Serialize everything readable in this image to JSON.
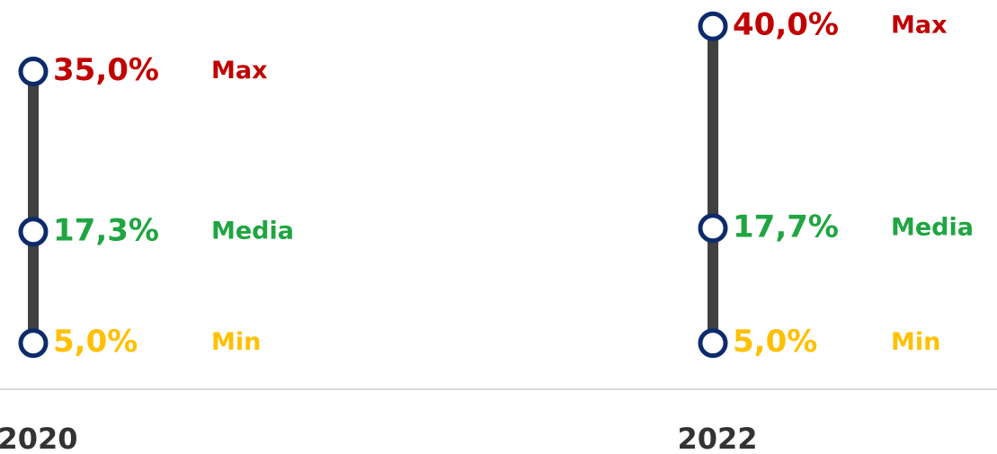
{
  "chart_data": {
    "type": "range",
    "categories": [
      "2020",
      "2022"
    ],
    "series": [
      {
        "name": "Max",
        "color": "#c00000",
        "values": [
          35.0,
          40.0
        ],
        "value_labels": [
          "35,0%",
          "40,0%"
        ]
      },
      {
        "name": "Media",
        "color": "#1fa541",
        "values": [
          17.3,
          17.7
        ],
        "value_labels": [
          "17,3%",
          "17,7%"
        ]
      },
      {
        "name": "Min",
        "color": "#ffc000",
        "values": [
          5.0,
          5.0
        ],
        "value_labels": [
          "5,0%",
          "5,0%"
        ]
      }
    ],
    "line_color": "#404040",
    "marker_color": "#0d2b6b"
  }
}
